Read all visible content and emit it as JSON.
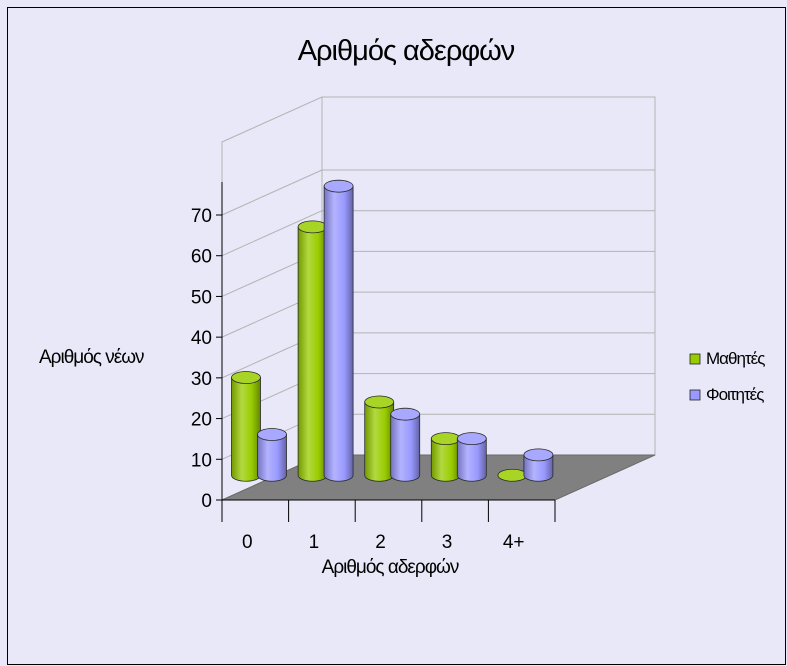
{
  "chart_data": {
    "type": "bar",
    "title": "Αριθμός αδερφών",
    "xlabel": "Αριθμός αδερφών",
    "ylabel": "Αριθμός νέων",
    "categories": [
      "0",
      "1",
      "2",
      "3",
      "4+"
    ],
    "series": [
      {
        "name": "Μαθητές",
        "values": [
          24,
          61,
          18,
          9,
          0
        ],
        "color": "#99cc00"
      },
      {
        "name": "Φοιτητές",
        "values": [
          10,
          71,
          15,
          9,
          5
        ],
        "color": "#9999ff"
      }
    ],
    "ylim": [
      0,
      70
    ],
    "yticks": [
      "0",
      "10",
      "20",
      "30",
      "40",
      "50",
      "60",
      "70"
    ],
    "grid": true,
    "legend": "right",
    "floor_color": "#808080",
    "wall_grid_color": "#b3b3b3"
  }
}
